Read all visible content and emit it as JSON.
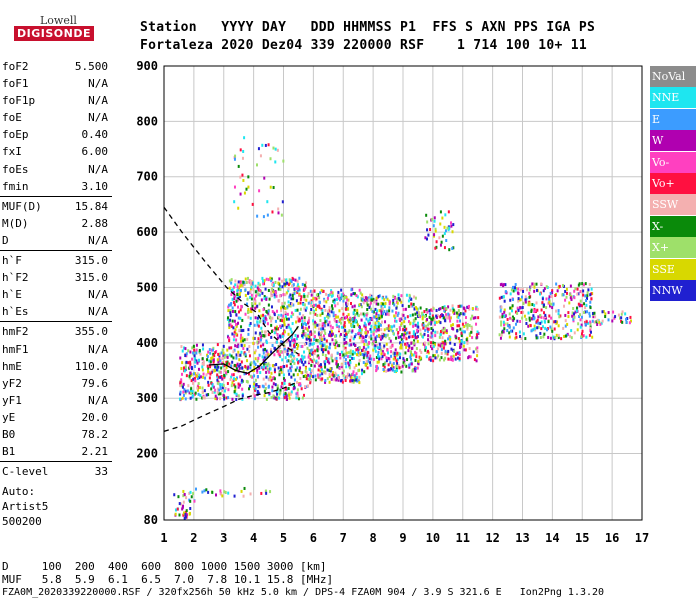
{
  "logo": {
    "top": "Lowell",
    "bottom": "DIGISONDE"
  },
  "header": {
    "line1": "Station   YYYY DAY   DDD HHMMSS P1  FFS S AXN PPS IGA PS",
    "line2": "Fortaleza 2020 Dez04 339 220000 RSF    1 714 100 10+ 11"
  },
  "params": [
    {
      "group": [
        {
          "k": "foF2",
          "v": "5.500"
        },
        {
          "k": "foF1",
          "v": "N/A"
        },
        {
          "k": "foF1p",
          "v": "N/A"
        },
        {
          "k": "foE",
          "v": "N/A"
        },
        {
          "k": "foEp",
          "v": "0.40"
        },
        {
          "k": "fxI",
          "v": "6.00"
        },
        {
          "k": "foEs",
          "v": "N/A"
        },
        {
          "k": "fmin",
          "v": "3.10"
        }
      ]
    },
    {
      "group": [
        {
          "k": "MUF(D)",
          "v": "15.84"
        },
        {
          "k": "M(D)",
          "v": "2.88"
        },
        {
          "k": "D",
          "v": "N/A"
        }
      ]
    },
    {
      "group": [
        {
          "k": "h`F",
          "v": "315.0"
        },
        {
          "k": "h`F2",
          "v": "315.0"
        },
        {
          "k": "h`E",
          "v": "N/A"
        },
        {
          "k": "h`Es",
          "v": "N/A"
        }
      ]
    },
    {
      "group": [
        {
          "k": "hmF2",
          "v": "355.0"
        },
        {
          "k": "hmF1",
          "v": "N/A"
        },
        {
          "k": "hmE",
          "v": "110.0"
        },
        {
          "k": "yF2",
          "v": "79.6"
        },
        {
          "k": "yF1",
          "v": "N/A"
        },
        {
          "k": "yE",
          "v": "20.0"
        },
        {
          "k": "B0",
          "v": "78.2"
        },
        {
          "k": "B1",
          "v": "2.21"
        }
      ]
    },
    {
      "group": [
        {
          "k": "C-level",
          "v": "33"
        }
      ]
    }
  ],
  "auto": [
    "Auto:",
    "Artist5",
    "500200"
  ],
  "legend": [
    {
      "label": "NoVal",
      "color": "#8c8c8c"
    },
    {
      "label": "NNE",
      "color": "#1ee6f0"
    },
    {
      "label": "E",
      "color": "#3c9cff"
    },
    {
      "label": "W",
      "color": "#b000b0"
    },
    {
      "label": "Vo-",
      "color": "#ff40c0"
    },
    {
      "label": "Vo+",
      "color": "#ff1040"
    },
    {
      "label": "SSW",
      "color": "#f4b0b0"
    },
    {
      "label": "X-",
      "color": "#0a8a0a"
    },
    {
      "label": "X+",
      "color": "#9ee06a"
    },
    {
      "label": "SSE",
      "color": "#d8d800"
    },
    {
      "label": "NNW",
      "color": "#2020d0"
    }
  ],
  "footer": {
    "line1": "D     100  200  400  600  800 1000 1500 3000 [km]",
    "line2": "MUF   5.8  5.9  6.1  6.5  7.0  7.8 10.1 15.8 [MHz]",
    "line3": "FZA0M_2020339220000.RSF / 320fx256h 50 kHz 5.0 km / DPS-4 FZA0M 904 / 3.9 S 321.6 E   Ion2Png 1.3.20"
  },
  "chart_data": {
    "type": "scatter",
    "x_range": [
      1,
      17
    ],
    "y_range": [
      80,
      900
    ],
    "x_ticks": [
      1,
      2,
      3,
      4,
      5,
      6,
      7,
      8,
      9,
      10,
      11,
      12,
      13,
      14,
      15,
      16,
      17
    ],
    "y_ticks": [
      80,
      200,
      300,
      400,
      500,
      600,
      700,
      800,
      900
    ],
    "grid": true,
    "legend_position": "right",
    "clusters": [
      {
        "x": [
          1.5,
          3.1
        ],
        "y": [
          300,
          400
        ],
        "density": 280
      },
      {
        "x": [
          3.1,
          5.8
        ],
        "y": [
          300,
          520
        ],
        "density": 900
      },
      {
        "x": [
          5.8,
          7.6
        ],
        "y": [
          330,
          500
        ],
        "density": 550
      },
      {
        "x": [
          7.6,
          9.5
        ],
        "y": [
          350,
          490
        ],
        "density": 500
      },
      {
        "x": [
          9.5,
          11.5
        ],
        "y": [
          370,
          470
        ],
        "density": 320
      },
      {
        "x": [
          12.2,
          15.3
        ],
        "y": [
          410,
          510
        ],
        "density": 380
      },
      {
        "x": [
          15.3,
          16.6
        ],
        "y": [
          435,
          460
        ],
        "density": 40
      },
      {
        "x": [
          9.7,
          10.7
        ],
        "y": [
          570,
          640
        ],
        "density": 45
      },
      {
        "x": [
          3.3,
          5.0
        ],
        "y": [
          630,
          780
        ],
        "density": 45
      },
      {
        "x": [
          1.3,
          2.0
        ],
        "y": [
          85,
          135
        ],
        "density": 40
      },
      {
        "x": [
          2.0,
          4.6
        ],
        "y": [
          125,
          140
        ],
        "density": 25
      }
    ],
    "profile_dashed": [
      [
        1.0,
        645
      ],
      [
        1.6,
        600
      ],
      [
        2.4,
        545
      ],
      [
        3.1,
        500
      ],
      [
        3.7,
        470
      ],
      [
        4.1,
        455
      ],
      [
        4.5,
        420
      ],
      [
        5.0,
        395
      ],
      [
        5.5,
        380
      ]
    ],
    "trace_dashed_lower": [
      [
        1.0,
        240
      ],
      [
        1.6,
        250
      ],
      [
        2.3,
        268
      ],
      [
        3.0,
        285
      ],
      [
        3.5,
        298
      ],
      [
        4.0,
        305
      ],
      [
        4.5,
        310
      ],
      [
        5.0,
        318
      ],
      [
        5.5,
        330
      ]
    ],
    "trace_solid": [
      [
        2.5,
        360
      ],
      [
        3.0,
        362
      ],
      [
        3.4,
        350
      ],
      [
        3.8,
        345
      ],
      [
        4.2,
        358
      ],
      [
        4.6,
        380
      ],
      [
        5.0,
        400
      ],
      [
        5.3,
        415
      ],
      [
        5.5,
        430
      ]
    ]
  }
}
